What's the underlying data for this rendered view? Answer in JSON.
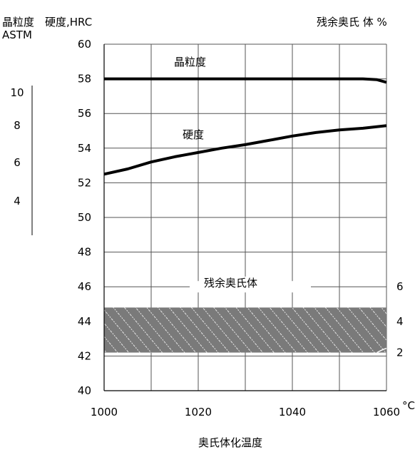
{
  "chart_data": {
    "type": "line",
    "title": "",
    "xlabel": "奥氏体化温度",
    "x_unit": "°C",
    "xlim": [
      1000,
      1060
    ],
    "x_ticks": [
      1000,
      1020,
      1040,
      1060
    ],
    "ylabel_left_outer": "晶粒度",
    "ylabel_left_outer_sub": "ASTM",
    "ylabel_left": "硬度,HRC",
    "ylabel_right": "残余奥氏 体 %",
    "ylim": [
      40,
      60
    ],
    "y_ticks": [
      40,
      42,
      44,
      46,
      48,
      50,
      52,
      54,
      56,
      58,
      60
    ],
    "grain_ticks": [
      10,
      8,
      6,
      4
    ],
    "right_ticks": [
      6,
      4,
      2
    ],
    "grid": true,
    "series": [
      {
        "name": "晶粒度",
        "x": [
          1000,
          1010,
          1020,
          1030,
          1040,
          1050,
          1055,
          1058,
          1060
        ],
        "y": [
          58.0,
          58.0,
          58.0,
          58.0,
          58.0,
          58.0,
          58.0,
          57.95,
          57.8
        ]
      },
      {
        "name": "硬度",
        "x": [
          1000,
          1005,
          1010,
          1015,
          1020,
          1025,
          1030,
          1035,
          1040,
          1045,
          1050,
          1055,
          1060
        ],
        "y": [
          52.5,
          52.8,
          53.2,
          53.5,
          53.75,
          54.0,
          54.2,
          54.45,
          54.7,
          54.9,
          55.05,
          55.15,
          55.3
        ]
      }
    ],
    "band": {
      "name": "残余奥氏体",
      "y_range": [
        42.2,
        44.8
      ]
    }
  }
}
